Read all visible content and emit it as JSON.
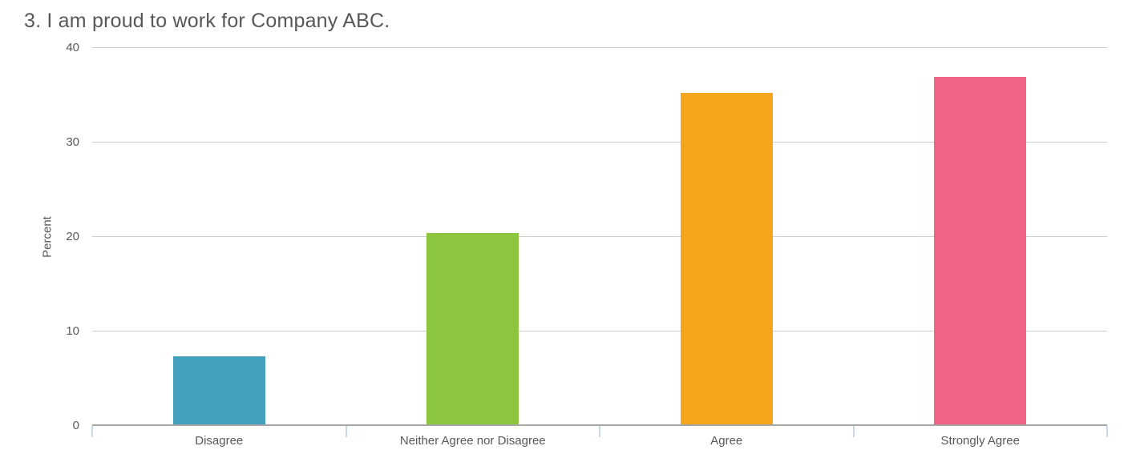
{
  "chart_data": {
    "type": "bar",
    "title": "3. I am proud to work for Company ABC.",
    "categories": [
      "Disagree",
      "Neither Agree nor Disagree",
      "Agree",
      "Strongly Agree"
    ],
    "values": [
      7.3,
      20.3,
      35.2,
      36.9
    ],
    "bar_colors": [
      "#42A0BD",
      "#8CC63F",
      "#F5A51C",
      "#EF6384"
    ],
    "xlabel": "",
    "ylabel": "Percent",
    "ylim": [
      0,
      40
    ],
    "yticks": [
      0,
      10,
      20,
      30,
      40
    ],
    "grid": true,
    "legend": false
  },
  "style": {
    "text_color": "#57585B",
    "grid_color": "#CDCDCD",
    "baseline_color": "#A6A6A6",
    "boundary_tick_color": "#C9D7EC",
    "background": "#FFFFFF"
  }
}
